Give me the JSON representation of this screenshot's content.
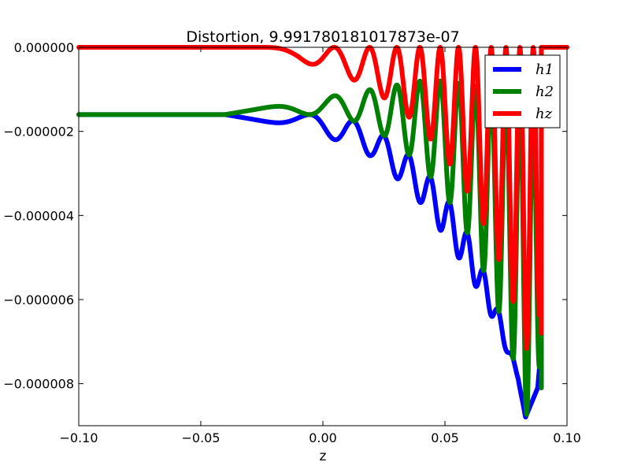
{
  "chart_data": {
    "type": "line",
    "title": "Distortion, 9.991780181017873e-07",
    "xlabel": "z",
    "ylabel": "",
    "xlim": [
      -0.1,
      0.1
    ],
    "ylim": [
      -9e-06,
      0.0
    ],
    "x_ticks": [
      -0.1,
      -0.05,
      0.0,
      0.05,
      0.1
    ],
    "x_tick_labels": [
      "−0.10",
      "−0.05",
      "0.00",
      "0.05",
      "0.10"
    ],
    "y_ticks": [
      0.0,
      -2e-06,
      -4e-06,
      -6e-06,
      -8e-06
    ],
    "y_tick_labels": [
      "0.000000",
      "−0.000002",
      "−0.000004",
      "−0.000006",
      "−0.000008"
    ],
    "legend": {
      "placement": "top-right",
      "entries": [
        "h1",
        "h2",
        "hz"
      ]
    },
    "grid": false,
    "x": [
      -0.1,
      -0.09,
      -0.08,
      -0.07,
      -0.06,
      -0.05,
      -0.04,
      -0.03,
      -0.02,
      -0.01,
      0.0,
      0.01,
      0.02,
      0.03,
      0.04,
      0.05,
      0.06,
      0.07,
      0.08,
      0.083,
      0.088,
      0.1
    ],
    "series": [
      {
        "name": "h1",
        "color": "#0000ff",
        "values": [
          -1.6e-06,
          -1.6e-06,
          -1.6e-06,
          -1.6e-06,
          -1.6e-06,
          -1.6e-06,
          -1.6e-06,
          -1.6e-06,
          -1.6e-06,
          -1.6e-06,
          -1.6e-06,
          -1.7e-06,
          -1.9e-06,
          -2.3e-06,
          -2.8e-06,
          -3.5e-06,
          -4.5e-06,
          -5.9e-06,
          -7.8e-06,
          -8.8e-06,
          -8.1e-06,
          0.0
        ],
        "oscillation_envelope_lower": [
          -1.6e-06,
          -1.6e-06,
          -1.6e-06,
          -1.6e-06,
          -1.6e-06,
          -1.6e-06,
          -1.6e-06,
          -1.7e-06,
          -1.8e-06,
          -1.9e-06,
          -2.1e-06,
          -2.3e-06,
          -2.6e-06,
          -3.1e-06,
          -3.7e-06,
          -4.5e-06,
          -5.4e-06,
          -6.5e-06,
          -7.9e-06,
          -8.8e-06,
          -8.1e-06,
          0.0
        ]
      },
      {
        "name": "h2",
        "color": "#008000",
        "values": [
          -1.6e-06,
          -1.6e-06,
          -1.6e-06,
          -1.6e-06,
          -1.6e-06,
          -1.6e-06,
          -1.6e-06,
          -1.6e-06,
          -1.6e-06,
          -1.6e-06,
          -1.6e-06,
          -1.7e-06,
          -1.9e-06,
          -2.3e-06,
          -2.8e-06,
          -3.5e-06,
          -4.5e-06,
          -5.9e-06,
          -7.8e-06,
          -8.8e-06,
          -8.1e-06,
          0.0
        ],
        "oscillation_envelope_upper": [
          -1.6e-06,
          -1.6e-06,
          -1.6e-06,
          -1.6e-06,
          -1.6e-06,
          -1.6e-06,
          -1.6e-06,
          -1.5e-06,
          -1.4e-06,
          -1.3e-06,
          -1.2e-06,
          -1.1e-06,
          -1e-06,
          -9e-07,
          -8e-07,
          -8e-07,
          -9e-07,
          -1e-06,
          -1.2e-06,
          -1.4e-06,
          -1.6e-06,
          0.0
        ]
      },
      {
        "name": "hz",
        "color": "#ff0000",
        "values": [
          0.0,
          0.0,
          0.0,
          0.0,
          0.0,
          0.0,
          0.0,
          -1e-07,
          -2e-07,
          -3e-07,
          -5e-07,
          -7e-07,
          -1e-06,
          -1.4e-06,
          -1.9e-06,
          -2.6e-06,
          -3.5e-06,
          -4.7e-06,
          -6.4e-06,
          -7.2e-06,
          -6.8e-06,
          0.0
        ],
        "oscillation_envelope_upper": [
          0.0,
          0.0,
          0.0,
          0.0,
          0.0,
          0.0,
          0.0,
          0.0,
          0.0,
          0.0,
          0.0,
          0.0,
          0.0,
          0.0,
          0.0,
          0.0,
          0.0,
          0.0,
          0.0,
          0.0,
          0.0,
          0.0
        ]
      }
    ]
  }
}
